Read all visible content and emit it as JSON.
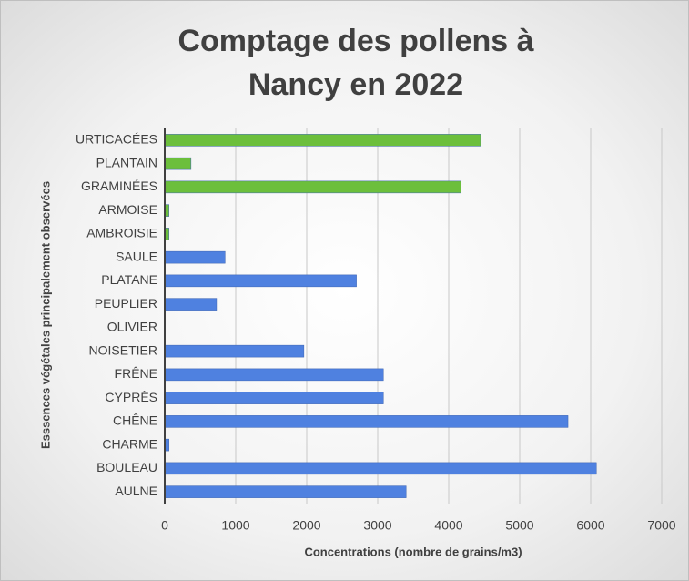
{
  "chart_data": {
    "type": "barh",
    "title": "Comptage des pollens à Nancy en 2022",
    "xlabel": "Concentrations (nombre de grains/m3)",
    "ylabel": "Esssences végétales principalement observées",
    "categories": [
      "AULNE",
      "BOULEAU",
      "CHARME",
      "CHÊNE",
      "CYPRÈS",
      "FRÊNE",
      "NOISETIER",
      "OLIVIER",
      "PEUPLIER",
      "PLATANE",
      "SAULE",
      "AMBROISIE",
      "ARMOISE",
      "GRAMINÉES",
      "PLANTAIN",
      "URTICACÉES"
    ],
    "values": [
      3400,
      6080,
      60,
      5680,
      3080,
      3080,
      1960,
      0,
      730,
      2700,
      850,
      60,
      60,
      4170,
      370,
      4450
    ],
    "colors": [
      "#4f81e0",
      "#4f81e0",
      "#4f81e0",
      "#4f81e0",
      "#4f81e0",
      "#4f81e0",
      "#4f81e0",
      "#4f81e0",
      "#4f81e0",
      "#4f81e0",
      "#4f81e0",
      "#6cbf3c",
      "#6cbf3c",
      "#6cbf3c",
      "#6cbf3c",
      "#6cbf3c"
    ],
    "xlim": [
      0,
      7000
    ],
    "xticks": [
      0,
      1000,
      2000,
      3000,
      4000,
      5000,
      6000,
      7000
    ],
    "grid": true
  }
}
